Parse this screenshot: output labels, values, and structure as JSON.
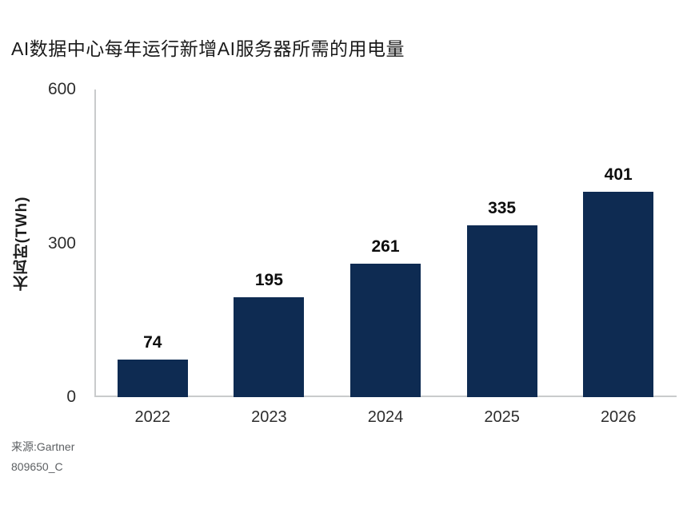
{
  "title": "AI数据中心每年运行新增AI服务器所需的用电量",
  "colors": {
    "bar": "#0e2b52",
    "axis_line": "#c9cbcc",
    "title_text": "#1a1a1a",
    "value_label_text": "#0d0d0d",
    "tick_text": "#2d2d2d",
    "source_text": "#5d6063",
    "background": "#ffffff"
  },
  "chart_data": {
    "type": "bar",
    "title": "AI数据中心每年运行新增AI服务器所需的用电量",
    "categories": [
      "2022",
      "2023",
      "2024",
      "2025",
      "2026"
    ],
    "values": [
      74,
      195,
      261,
      335,
      401
    ],
    "xlabel": "",
    "ylabel": "太瓦时(TWh)",
    "yticks": [
      0,
      300,
      600
    ],
    "ylim": [
      0,
      600
    ],
    "grid": false,
    "legend_position": "none",
    "data_labels": true,
    "source": "来源:Gartner",
    "figure_id": "809650_C"
  }
}
